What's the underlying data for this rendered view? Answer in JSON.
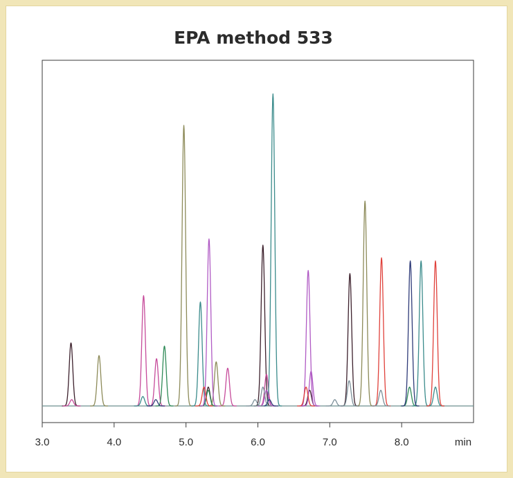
{
  "chart_data": {
    "type": "line",
    "title": "EPA method 533",
    "xlabel": "",
    "xunit": "min",
    "ylabel": "",
    "xlim": [
      3.0,
      9.0
    ],
    "ylim": [
      0,
      100
    ],
    "x_ticks": [
      "3.0",
      "4.0",
      "5.0",
      "6.0",
      "7.0",
      "8.0"
    ],
    "x_tick_values": [
      3.0,
      4.0,
      5.0,
      6.0,
      7.0,
      8.0
    ],
    "grid": false,
    "legend": "none",
    "series": [
      {
        "color": "#3b1f2b",
        "peaks": [
          {
            "rt": 3.4,
            "height": 20
          },
          {
            "rt": 6.07,
            "height": 51
          },
          {
            "rt": 7.28,
            "height": 42
          },
          {
            "rt": 6.72,
            "height": 5
          },
          {
            "rt": 5.31,
            "height": 6
          }
        ]
      },
      {
        "color": "#c64a9a",
        "peaks": [
          {
            "rt": 3.41,
            "height": 2
          },
          {
            "rt": 4.41,
            "height": 35
          },
          {
            "rt": 4.59,
            "height": 15
          },
          {
            "rt": 5.58,
            "height": 12
          },
          {
            "rt": 6.12,
            "height": 10
          }
        ]
      },
      {
        "color": "#8c8a58",
        "peaks": [
          {
            "rt": 3.79,
            "height": 16
          },
          {
            "rt": 4.97,
            "height": 89
          },
          {
            "rt": 5.42,
            "height": 14
          },
          {
            "rt": 7.49,
            "height": 65
          }
        ]
      },
      {
        "color": "#2f8a57",
        "peaks": [
          {
            "rt": 4.7,
            "height": 19
          },
          {
            "rt": 5.31,
            "height": 5
          },
          {
            "rt": 8.11,
            "height": 6
          }
        ]
      },
      {
        "color": "#3a8b8b",
        "peaks": [
          {
            "rt": 4.4,
            "height": 3
          },
          {
            "rt": 5.2,
            "height": 33
          },
          {
            "rt": 6.21,
            "height": 99
          },
          {
            "rt": 8.27,
            "height": 46
          },
          {
            "rt": 8.47,
            "height": 6
          }
        ]
      },
      {
        "color": "#b05ac4",
        "peaks": [
          {
            "rt": 5.32,
            "height": 53
          },
          {
            "rt": 6.7,
            "height": 43
          },
          {
            "rt": 6.74,
            "height": 11
          },
          {
            "rt": 6.12,
            "height": 5
          }
        ]
      },
      {
        "color": "#e0403a",
        "peaks": [
          {
            "rt": 5.25,
            "height": 6
          },
          {
            "rt": 6.67,
            "height": 6
          },
          {
            "rt": 7.72,
            "height": 47
          },
          {
            "rt": 8.47,
            "height": 46
          }
        ]
      },
      {
        "color": "#2e3a78",
        "peaks": [
          {
            "rt": 8.12,
            "height": 46
          },
          {
            "rt": 4.58,
            "height": 2
          },
          {
            "rt": 6.16,
            "height": 2
          }
        ]
      },
      {
        "color": "#7b8f99",
        "peaks": [
          {
            "rt": 6.07,
            "height": 6
          },
          {
            "rt": 7.27,
            "height": 8
          },
          {
            "rt": 7.71,
            "height": 5
          },
          {
            "rt": 5.96,
            "height": 2
          },
          {
            "rt": 7.07,
            "height": 2
          }
        ]
      }
    ]
  }
}
